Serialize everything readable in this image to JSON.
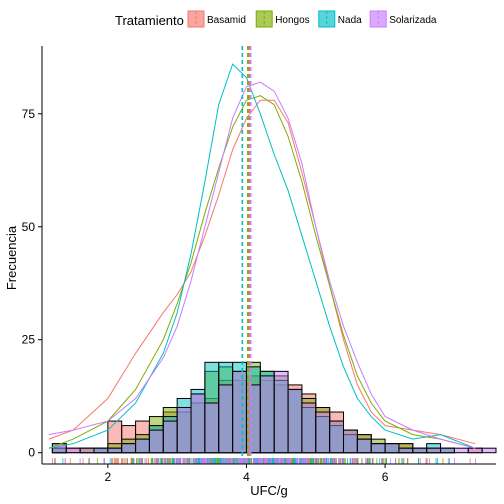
{
  "chart_data": {
    "type": "histogram",
    "xlabel": "UFC/g",
    "ylabel": "Frecuencia",
    "xlim": [
      1.05,
      7.6
    ],
    "ylim": [
      -2.5,
      90
    ],
    "x_ticks": [
      2,
      4,
      6
    ],
    "y_ticks": [
      0,
      25,
      50,
      75
    ],
    "grid": false,
    "legend": {
      "title": "Tratamiento",
      "position": "top",
      "entries": [
        "Basamid",
        "Hongos",
        "Nada",
        "Solarizada"
      ]
    },
    "colors": {
      "Basamid": "#F8766D",
      "Hongos": "#7CAE00",
      "Nada": "#00BFC4",
      "Solarizada": "#C77CFF"
    },
    "bin_width": 0.2,
    "bin_starts": [
      1.2,
      1.4,
      1.6,
      1.8,
      2.0,
      2.2,
      2.4,
      2.6,
      2.8,
      3.0,
      3.2,
      3.4,
      3.6,
      3.8,
      4.0,
      4.2,
      4.4,
      4.6,
      4.8,
      5.0,
      5.2,
      5.4,
      5.6,
      5.8,
      6.0,
      6.2,
      6.4,
      6.6,
      6.8,
      7.0,
      7.2,
      7.4
    ],
    "series": [
      {
        "name": "Basamid",
        "values": [
          2,
          1,
          1,
          1,
          7,
          6,
          7,
          6,
          9,
          10,
          13,
          12,
          16,
          16,
          17,
          16,
          15,
          15,
          13,
          10,
          9,
          5,
          4,
          2,
          2,
          2,
          1,
          1,
          0,
          0,
          1,
          0
        ]
      },
      {
        "name": "Hongos",
        "values": [
          1,
          0,
          1,
          1,
          2,
          3,
          4,
          8,
          10,
          9,
          11,
          18,
          19,
          18,
          20,
          18,
          17,
          14,
          12,
          10,
          7,
          5,
          4,
          3,
          2,
          2,
          1,
          1,
          1,
          0,
          0,
          0
        ]
      },
      {
        "name": "Nada",
        "values": [
          1,
          0,
          0,
          1,
          1,
          2,
          3,
          6,
          8,
          12,
          14,
          20,
          20,
          20,
          19,
          18,
          16,
          14,
          10,
          8,
          6,
          4,
          3,
          2,
          2,
          1,
          1,
          2,
          1,
          0,
          0,
          0
        ]
      },
      {
        "name": "Solarizada",
        "values": [
          2,
          1,
          1,
          1,
          1,
          2,
          3,
          5,
          7,
          10,
          13,
          11,
          15,
          18,
          15,
          17,
          18,
          14,
          11,
          9,
          7,
          5,
          3,
          2,
          2,
          1,
          1,
          1,
          1,
          1,
          1,
          1
        ]
      }
    ],
    "density_curves": [
      {
        "name": "Basamid",
        "points": [
          [
            1.15,
            3
          ],
          [
            1.5,
            5
          ],
          [
            2.0,
            12
          ],
          [
            2.4,
            22
          ],
          [
            2.8,
            31
          ],
          [
            3.0,
            35
          ],
          [
            3.2,
            40
          ],
          [
            3.4,
            48
          ],
          [
            3.6,
            57
          ],
          [
            3.8,
            67
          ],
          [
            4.0,
            74
          ],
          [
            4.2,
            78
          ],
          [
            4.4,
            78
          ],
          [
            4.6,
            73
          ],
          [
            4.8,
            62
          ],
          [
            5.0,
            50
          ],
          [
            5.2,
            37
          ],
          [
            5.4,
            25
          ],
          [
            5.6,
            15
          ],
          [
            5.8,
            9
          ],
          [
            6.0,
            6
          ],
          [
            6.4,
            5
          ],
          [
            6.8,
            4
          ],
          [
            7.3,
            2
          ]
        ]
      },
      {
        "name": "Hongos",
        "points": [
          [
            1.15,
            1
          ],
          [
            1.5,
            3
          ],
          [
            2.0,
            7
          ],
          [
            2.4,
            14
          ],
          [
            2.8,
            25
          ],
          [
            3.0,
            33
          ],
          [
            3.2,
            42
          ],
          [
            3.4,
            53
          ],
          [
            3.6,
            63
          ],
          [
            3.8,
            72
          ],
          [
            4.0,
            78
          ],
          [
            4.2,
            79
          ],
          [
            4.4,
            77
          ],
          [
            4.6,
            70
          ],
          [
            4.8,
            60
          ],
          [
            5.0,
            48
          ],
          [
            5.2,
            37
          ],
          [
            5.4,
            26
          ],
          [
            5.6,
            17
          ],
          [
            5.8,
            11
          ],
          [
            6.0,
            7
          ],
          [
            6.4,
            4
          ],
          [
            6.8,
            3
          ],
          [
            7.3,
            1
          ]
        ]
      },
      {
        "name": "Nada",
        "points": [
          [
            1.15,
            1
          ],
          [
            1.5,
            2
          ],
          [
            2.0,
            5
          ],
          [
            2.4,
            11
          ],
          [
            2.8,
            22
          ],
          [
            3.0,
            31
          ],
          [
            3.2,
            44
          ],
          [
            3.4,
            60
          ],
          [
            3.6,
            77
          ],
          [
            3.8,
            86
          ],
          [
            4.0,
            83
          ],
          [
            4.2,
            75
          ],
          [
            4.4,
            66
          ],
          [
            4.6,
            58
          ],
          [
            4.8,
            48
          ],
          [
            5.0,
            38
          ],
          [
            5.2,
            28
          ],
          [
            5.4,
            19
          ],
          [
            5.6,
            12
          ],
          [
            5.8,
            8
          ],
          [
            6.0,
            5
          ],
          [
            6.4,
            3
          ],
          [
            6.8,
            4
          ],
          [
            7.3,
            1
          ]
        ]
      },
      {
        "name": "Solarizada",
        "points": [
          [
            1.15,
            4
          ],
          [
            1.5,
            5
          ],
          [
            2.0,
            7
          ],
          [
            2.4,
            12
          ],
          [
            2.8,
            21
          ],
          [
            3.0,
            28
          ],
          [
            3.2,
            38
          ],
          [
            3.4,
            50
          ],
          [
            3.6,
            62
          ],
          [
            3.8,
            74
          ],
          [
            4.0,
            81
          ],
          [
            4.2,
            82
          ],
          [
            4.4,
            80
          ],
          [
            4.6,
            74
          ],
          [
            4.8,
            64
          ],
          [
            5.0,
            50
          ],
          [
            5.2,
            38
          ],
          [
            5.4,
            28
          ],
          [
            5.6,
            20
          ],
          [
            5.8,
            13
          ],
          [
            6.0,
            8
          ],
          [
            6.4,
            5
          ],
          [
            6.8,
            3
          ],
          [
            7.3,
            1
          ]
        ]
      }
    ],
    "mean_lines": [
      {
        "name": "Basamid",
        "x": 4.04
      },
      {
        "name": "Hongos",
        "x": 4.02
      },
      {
        "name": "Nada",
        "x": 3.94
      },
      {
        "name": "Solarizada",
        "x": 4.06
      }
    ],
    "rug_range": [
      1.15,
      7.35
    ]
  }
}
